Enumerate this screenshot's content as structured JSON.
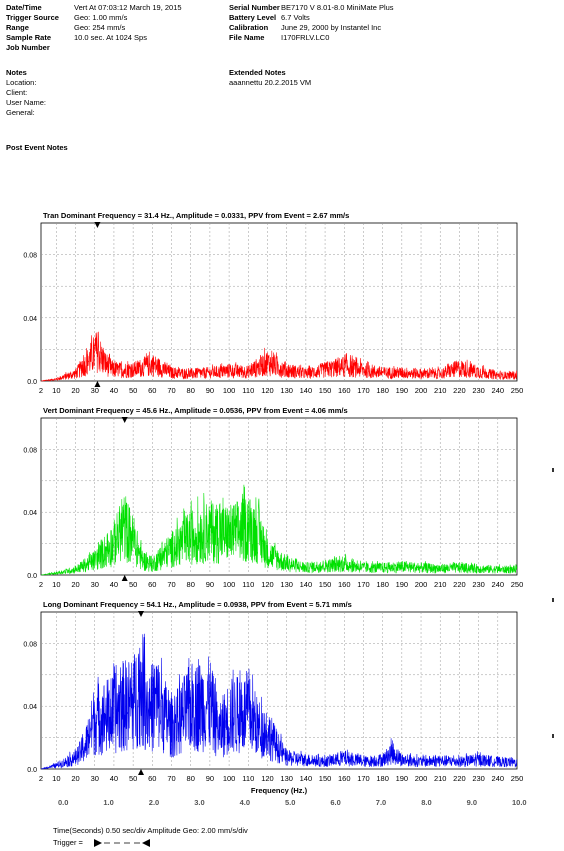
{
  "header": {
    "left": [
      {
        "label": "Date/Time",
        "value": "Vert At 07:03:12 March 19, 2015"
      },
      {
        "label": "Trigger Source",
        "value": "Geo: 1.00 mm/s"
      },
      {
        "label": "Range",
        "value": "Geo: 254 mm/s"
      },
      {
        "label": "Sample Rate",
        "value": "10.0  sec. At 1024 Sps"
      },
      {
        "label": "Job Number",
        "value": ""
      }
    ],
    "right": [
      {
        "label": "Serial Number",
        "value": "BE7170 V 8.01-8.0 MiniMate Plus"
      },
      {
        "label": "Battery Level",
        "value": "6.7 Volts"
      },
      {
        "label": "Calibration",
        "value": "June 29, 2000 by Instantel Inc"
      },
      {
        "label": "File Name",
        "value": "I170FRLV.LC0"
      }
    ]
  },
  "notes": {
    "title": "Notes",
    "fields": [
      "Location:",
      "Client:",
      "User Name:",
      "General:"
    ],
    "extended_title": "Extended Notes",
    "extended_text": "aaannettu 20.2.2015 VM"
  },
  "post_event_notes": "Post Event Notes",
  "chart_data": [
    {
      "type": "line",
      "title": "Tran Dominant Frequency = 31.4 Hz., Amplitude = 0.0331,  PPV from Event = 2.67 mm/s",
      "color": "#ff0000",
      "xlim": [
        2,
        250
      ],
      "ylim": [
        0,
        0.1
      ],
      "yticks": [
        0.0,
        0.04,
        0.08
      ],
      "ytick_labels": [
        "0.0",
        "0.04",
        "0.08"
      ],
      "xtick_labels": [
        "2",
        "10",
        "20",
        "30",
        "40",
        "50",
        "60",
        "70",
        "80",
        "90",
        "100",
        "110",
        "120",
        "130",
        "140",
        "150",
        "160",
        "170",
        "180",
        "190",
        "200",
        "210",
        "220",
        "230",
        "240",
        "250"
      ],
      "marker_x": 31.4,
      "series": [
        {
          "x": [
            2,
            10,
            20,
            25,
            31.4,
            35,
            40,
            50,
            60,
            70,
            80,
            90,
            100,
            110,
            120,
            130,
            140,
            150,
            160,
            170,
            180,
            190,
            200,
            210,
            220,
            230,
            240,
            250
          ],
          "values": [
            0.0,
            0.002,
            0.008,
            0.018,
            0.0331,
            0.02,
            0.012,
            0.012,
            0.018,
            0.009,
            0.008,
            0.009,
            0.011,
            0.01,
            0.02,
            0.012,
            0.008,
            0.012,
            0.016,
            0.012,
            0.009,
            0.009,
            0.008,
            0.008,
            0.014,
            0.01,
            0.006,
            0.006
          ]
        }
      ]
    },
    {
      "type": "line",
      "title": "Vert Dominant Frequency = 45.6 Hz., Amplitude = 0.0536,  PPV from Event = 4.06 mm/s",
      "color": "#00e000",
      "xlim": [
        2,
        250
      ],
      "ylim": [
        0,
        0.1
      ],
      "yticks": [
        0.0,
        0.04,
        0.08
      ],
      "ytick_labels": [
        "0.0",
        "0.04",
        "0.08"
      ],
      "xtick_labels": [
        "2",
        "10",
        "20",
        "30",
        "40",
        "50",
        "60",
        "70",
        "80",
        "90",
        "100",
        "110",
        "120",
        "130",
        "140",
        "150",
        "160",
        "170",
        "180",
        "190",
        "200",
        "210",
        "220",
        "230",
        "240",
        "250"
      ],
      "marker_x": 45.6,
      "series": [
        {
          "x": [
            2,
            10,
            20,
            30,
            40,
            45.6,
            50,
            55,
            60,
            70,
            80,
            90,
            100,
            110,
            115,
            120,
            130,
            140,
            150,
            160,
            170,
            180,
            190,
            200,
            210,
            220,
            230,
            240,
            250
          ],
          "values": [
            0.0,
            0.002,
            0.006,
            0.016,
            0.035,
            0.0536,
            0.038,
            0.016,
            0.012,
            0.028,
            0.042,
            0.048,
            0.045,
            0.052,
            0.046,
            0.024,
            0.012,
            0.008,
            0.01,
            0.012,
            0.008,
            0.008,
            0.009,
            0.008,
            0.007,
            0.008,
            0.007,
            0.006,
            0.006
          ]
        }
      ]
    },
    {
      "type": "line",
      "title": "Long Dominant Frequency = 54.1 Hz., Amplitude = 0.0938,  PPV from Event = 5.71 mm/s",
      "color": "#0000ee",
      "xlim": [
        2,
        250
      ],
      "ylim": [
        0,
        0.1
      ],
      "yticks": [
        0.0,
        0.04,
        0.08
      ],
      "ytick_labels": [
        "0.0",
        "0.04",
        "0.08"
      ],
      "xtick_labels": [
        "2",
        "10",
        "20",
        "30",
        "40",
        "50",
        "60",
        "70",
        "80",
        "90",
        "100",
        "110",
        "120",
        "130",
        "140",
        "150",
        "160",
        "170",
        "180",
        "190",
        "200",
        "210",
        "220",
        "230",
        "240",
        "250"
      ],
      "xlabel": "Frequency (Hz.)",
      "marker_x": 54.1,
      "series": [
        {
          "x": [
            2,
            10,
            20,
            25,
            30,
            40,
            45,
            50,
            54.1,
            58,
            62,
            70,
            80,
            90,
            95,
            100,
            110,
            115,
            120,
            125,
            130,
            140,
            150,
            160,
            170,
            180,
            185,
            190,
            200,
            210,
            220,
            230,
            240,
            250
          ],
          "values": [
            0.0,
            0.004,
            0.012,
            0.025,
            0.055,
            0.06,
            0.07,
            0.072,
            0.0938,
            0.062,
            0.076,
            0.045,
            0.068,
            0.072,
            0.04,
            0.058,
            0.062,
            0.045,
            0.04,
            0.025,
            0.012,
            0.01,
            0.008,
            0.012,
            0.008,
            0.01,
            0.018,
            0.01,
            0.008,
            0.009,
            0.008,
            0.01,
            0.008,
            0.007
          ]
        }
      ]
    }
  ],
  "time_axis": {
    "labels": [
      "0.0",
      "1.0",
      "2.0",
      "3.0",
      "4.0",
      "5.0",
      "6.0",
      "7.0",
      "8.0",
      "9.0",
      "10.0"
    ]
  },
  "footer": {
    "scale": "Time(Seconds) 0.50 sec/div   Amplitude Geo: 2.00 mm/s/div",
    "trigger_label": "Trigger ="
  }
}
